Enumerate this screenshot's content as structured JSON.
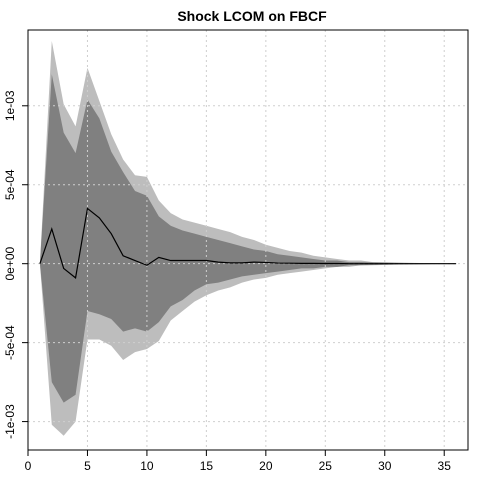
{
  "chart_data": {
    "type": "area",
    "title": "Shock LCOM on FBCF",
    "xlabel": "",
    "ylabel": "",
    "xlim": [
      0,
      37
    ],
    "ylim": [
      -0.00118,
      0.00148
    ],
    "grid": true,
    "x_ticks": [
      0,
      5,
      10,
      15,
      20,
      25,
      30,
      35
    ],
    "x_tick_labels": [
      "0",
      "5",
      "10",
      "15",
      "20",
      "25",
      "30",
      "35"
    ],
    "y_ticks": [
      -0.001,
      -0.0005,
      0,
      0.0005,
      0.001
    ],
    "y_tick_labels": [
      "-1e-03",
      "-5e-04",
      "0e+00",
      "5e-04",
      "1e-03"
    ],
    "x": [
      1,
      2,
      3,
      4,
      5,
      6,
      7,
      8,
      9,
      10,
      11,
      12,
      13,
      14,
      15,
      16,
      17,
      18,
      19,
      20,
      21,
      22,
      23,
      24,
      25,
      26,
      27,
      28,
      29,
      30,
      31,
      32,
      33,
      34,
      35,
      36
    ],
    "series": [
      {
        "role": "outer_upper",
        "color": "#bdbdbd",
        "values": [
          0.0,
          0.00141,
          0.00101,
          0.00087,
          0.00124,
          0.00103,
          0.00082,
          0.00066,
          0.00056,
          0.00055,
          0.0004,
          0.00032,
          0.00028,
          0.00026,
          0.00024,
          0.00022,
          0.0002,
          0.00017,
          0.00015,
          0.00012,
          0.0001,
          8e-05,
          7e-05,
          5e-05,
          4e-05,
          3e-05,
          2e-05,
          2e-05,
          1e-05,
          1e-05,
          8e-06,
          6e-06,
          4e-06,
          3e-06,
          2e-06,
          1e-06
        ]
      },
      {
        "role": "inner_upper",
        "color": "#808080",
        "values": [
          0.0,
          0.0012,
          0.00083,
          0.0007,
          0.00104,
          0.00092,
          0.00071,
          0.00058,
          0.00046,
          0.00043,
          0.0003,
          0.00024,
          0.00021,
          0.00019,
          0.00017,
          0.00015,
          0.00013,
          0.00011,
          9e-05,
          8e-05,
          6e-05,
          5e-05,
          4e-05,
          3e-05,
          2e-05,
          2e-05,
          1e-05,
          1e-05,
          8e-06,
          6e-06,
          4e-06,
          3e-06,
          2e-06,
          2e-06,
          1e-06,
          1e-06
        ]
      },
      {
        "role": "irf",
        "color": "#000000",
        "values": [
          0.0,
          0.00022,
          -3e-05,
          -9e-05,
          0.00035,
          0.00029,
          0.00019,
          5e-05,
          2e-05,
          -1e-05,
          4e-05,
          2e-05,
          2e-05,
          2e-05,
          2e-05,
          1e-05,
          5e-06,
          5e-06,
          1e-05,
          8e-06,
          4e-06,
          3e-06,
          2e-06,
          2e-06,
          1e-06,
          1e-06,
          0.0,
          0.0,
          0.0,
          0.0,
          0.0,
          0.0,
          0.0,
          0.0,
          0.0,
          0.0
        ]
      },
      {
        "role": "inner_lower",
        "color": "#808080",
        "values": [
          0.0,
          -0.00075,
          -0.00088,
          -0.00083,
          -0.0003,
          -0.00032,
          -0.00035,
          -0.00043,
          -0.00041,
          -0.00043,
          -0.00037,
          -0.00027,
          -0.00023,
          -0.00017,
          -0.00013,
          -0.00012,
          -0.0001,
          -8e-05,
          -7e-05,
          -6e-05,
          -5e-05,
          -4e-05,
          -3e-05,
          -3e-05,
          -2e-05,
          -2e-05,
          -1e-05,
          -1e-05,
          -8e-06,
          -6e-06,
          -5e-06,
          -4e-06,
          -3e-06,
          -2e-06,
          -2e-06,
          -1e-06
        ]
      },
      {
        "role": "outer_lower",
        "color": "#bdbdbd",
        "values": [
          0.0,
          -0.00102,
          -0.00109,
          -0.001,
          -0.00048,
          -0.00048,
          -0.00052,
          -0.00061,
          -0.00056,
          -0.00054,
          -0.00049,
          -0.00036,
          -0.0003,
          -0.00024,
          -0.0002,
          -0.00017,
          -0.00015,
          -0.00012,
          -0.0001,
          -9e-05,
          -7e-05,
          -6e-05,
          -5e-05,
          -4e-05,
          -3e-05,
          -2e-05,
          -2e-05,
          -1e-05,
          -1e-05,
          -8e-06,
          -6e-06,
          -5e-06,
          -4e-06,
          -3e-06,
          -2e-06,
          -1e-06
        ]
      }
    ]
  }
}
